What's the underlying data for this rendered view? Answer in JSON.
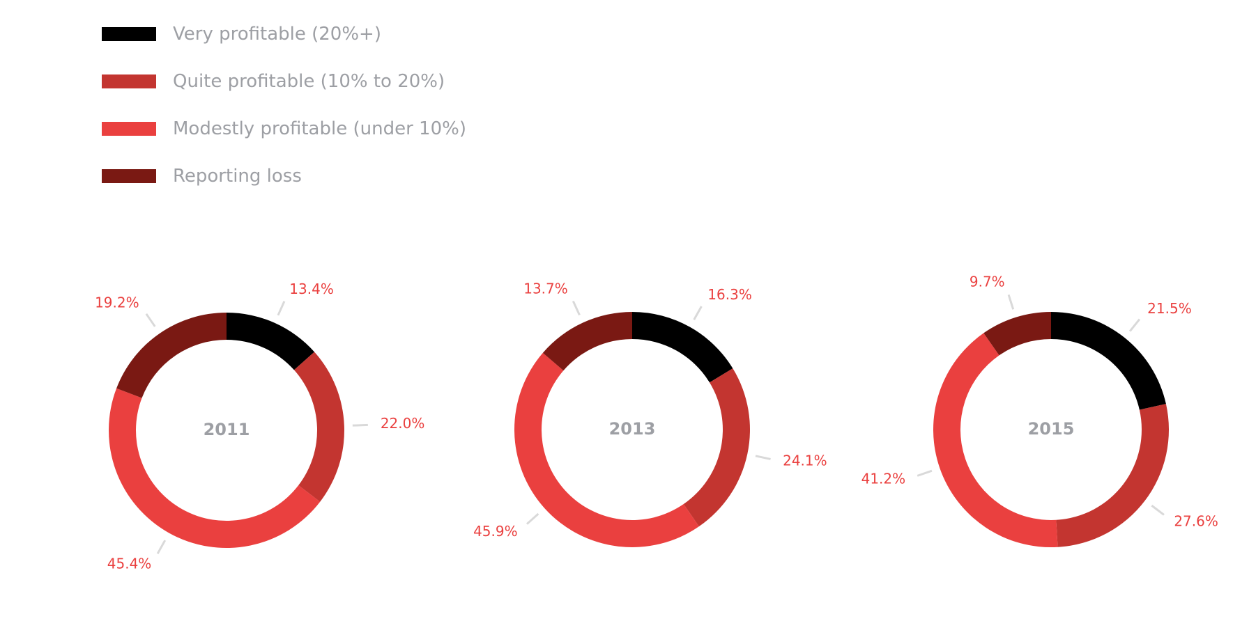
{
  "chart_data": {
    "type": "pie",
    "variant": "donut",
    "legend": {
      "placement": "top-left",
      "entries": [
        {
          "label": "Very profitable (20%+)",
          "color": "#000000"
        },
        {
          "label": "Quite profitable (10% to 20%)",
          "color": "#c33530"
        },
        {
          "label": "Modestly profitable (under 10%)",
          "color": "#ea403f"
        },
        {
          "label": "Reporting loss",
          "color": "#7a1913"
        }
      ]
    },
    "label_color": "#ea403f",
    "center_label_color": "#9d9fa4",
    "leader_color": "#d9d9d9",
    "charts": [
      {
        "year": "2011",
        "categories": [
          "Very profitable (20%+)",
          "Quite profitable (10% to 20%)",
          "Modestly profitable (under 10%)",
          "Reporting loss"
        ],
        "values": [
          13.4,
          22.0,
          45.4,
          19.2
        ],
        "labels": [
          "13.4%",
          "22.0%",
          "45.4%",
          "19.2%"
        ]
      },
      {
        "year": "2013",
        "categories": [
          "Very profitable (20%+)",
          "Quite profitable (10% to 20%)",
          "Modestly profitable (under 10%)",
          "Reporting loss"
        ],
        "values": [
          16.3,
          24.1,
          45.9,
          13.7
        ],
        "labels": [
          "16.3%",
          "24.1%",
          "45.9%",
          "13.7%"
        ]
      },
      {
        "year": "2015",
        "categories": [
          "Very profitable (20%+)",
          "Quite profitable (10% to 20%)",
          "Modestly profitable (under 10%)",
          "Reporting loss"
        ],
        "values": [
          21.5,
          27.6,
          41.2,
          9.7
        ],
        "labels": [
          "21.5%",
          "27.6%",
          "41.2%",
          "9.7%"
        ]
      }
    ]
  }
}
